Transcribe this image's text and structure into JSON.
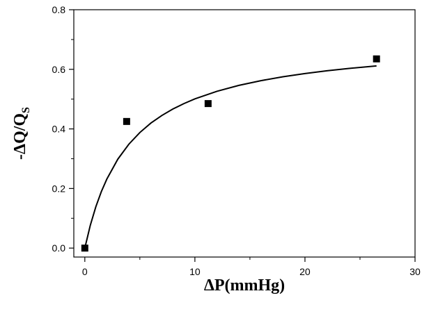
{
  "chart_data": {
    "type": "scatter",
    "xlabel": "ΔP(mmHg)",
    "ylabel_main": "-ΔQ/Q",
    "ylabel_sub": "S",
    "xlim": [
      -1,
      30
    ],
    "ylim": [
      -0.03,
      0.8
    ],
    "x_ticks": [
      0,
      10,
      20,
      30
    ],
    "x_tick_labels": [
      "0",
      "10",
      "20",
      "30"
    ],
    "y_ticks": [
      0.0,
      0.2,
      0.4,
      0.6,
      0.8
    ],
    "y_tick_labels": [
      "0.0",
      "0.2",
      "0.4",
      "0.6",
      "0.8"
    ],
    "grid": false,
    "series": [
      {
        "type": "scatter",
        "marker": "square",
        "x": [
          0,
          3.8,
          11.2,
          26.5
        ],
        "y": [
          0.0,
          0.425,
          0.485,
          0.635
        ]
      },
      {
        "type": "line",
        "x": [
          0,
          0.5,
          1,
          1.5,
          2,
          3,
          4,
          5,
          6,
          7,
          8,
          9,
          10,
          12,
          14,
          16,
          18,
          20,
          22,
          24,
          26.5
        ],
        "y": [
          0.0,
          0.0768,
          0.1386,
          0.1893,
          0.2317,
          0.2984,
          0.3487,
          0.3879,
          0.4194,
          0.4452,
          0.4668,
          0.4851,
          0.5008,
          0.5263,
          0.5461,
          0.562,
          0.575,
          0.5858,
          0.595,
          0.6029,
          0.6113
        ]
      }
    ],
    "colors": {
      "marker": "#000000",
      "line": "#000000",
      "axis": "#000000"
    }
  }
}
